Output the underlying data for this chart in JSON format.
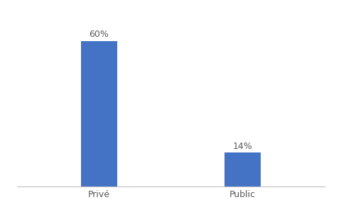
{
  "categories": [
    "Privé",
    "Public"
  ],
  "values": [
    60,
    14
  ],
  "bar_color": "#4472C4",
  "ylim": [
    0,
    70
  ],
  "bar_width": 0.35,
  "background_color": "#ffffff",
  "label_fontsize": 9,
  "tick_fontsize": 9,
  "label_color": "#595959",
  "tick_color": "#595959",
  "spine_color": "#c0c0c0",
  "xlim": [
    -0.5,
    2.5
  ],
  "x_positions": [
    0.3,
    1.7
  ]
}
